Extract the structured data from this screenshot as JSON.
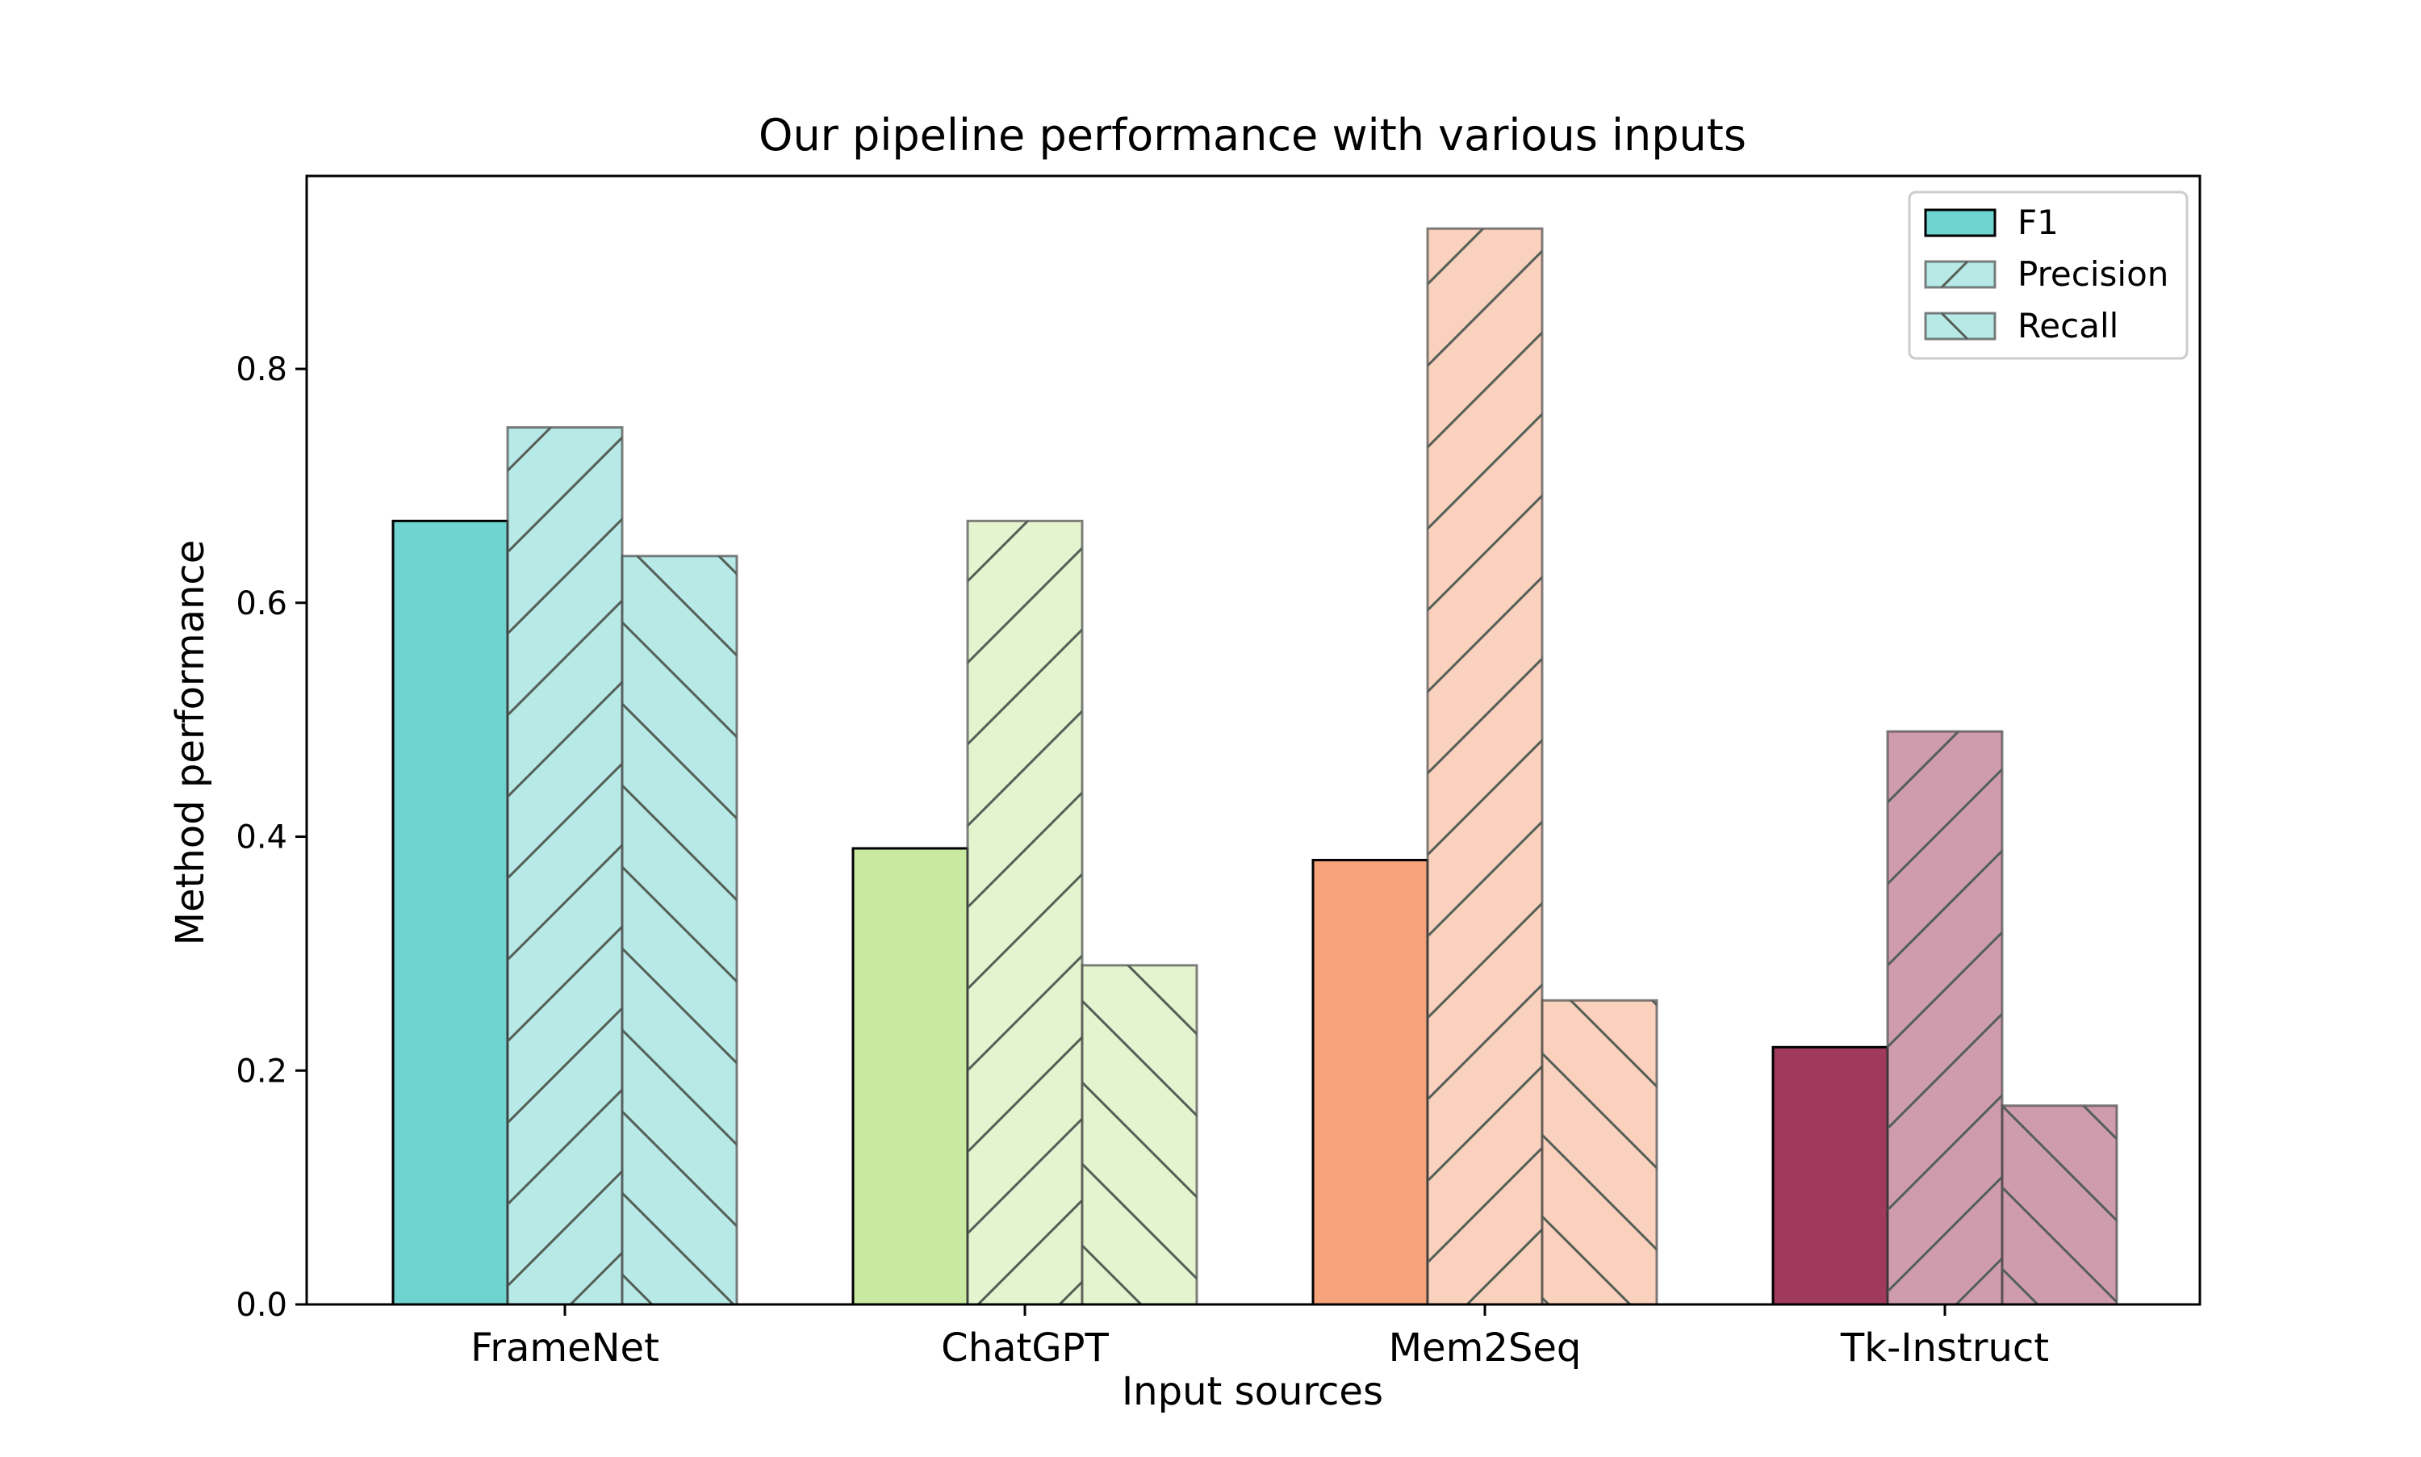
{
  "chart_data": {
    "type": "bar",
    "title": "Our pipeline performance with various inputs",
    "xlabel": "Input sources",
    "ylabel": "Method performance",
    "categories": [
      "FrameNet",
      "ChatGPT",
      "Mem2Seq",
      "Tk-Instruct"
    ],
    "ylim": [
      0,
      0.965
    ],
    "yticks": [
      "0.0",
      "0.2",
      "0.4",
      "0.6",
      "0.8"
    ],
    "grid": false,
    "legend_position": "top-right",
    "series": [
      {
        "name": "F1",
        "hatch": "none",
        "values": [
          0.67,
          0.39,
          0.38,
          0.22
        ]
      },
      {
        "name": "Precision",
        "hatch": "forward-diagonal",
        "values": [
          0.75,
          0.67,
          0.92,
          0.49
        ]
      },
      {
        "name": "Recall",
        "hatch": "backward-diagonal",
        "values": [
          0.64,
          0.29,
          0.26,
          0.17
        ]
      }
    ],
    "category_colors": [
      "#6fd3cf",
      "#c9e9a0",
      "#f6a37b",
      "#a03a5d"
    ],
    "series_opacity": [
      1.0,
      0.5,
      0.5
    ]
  }
}
